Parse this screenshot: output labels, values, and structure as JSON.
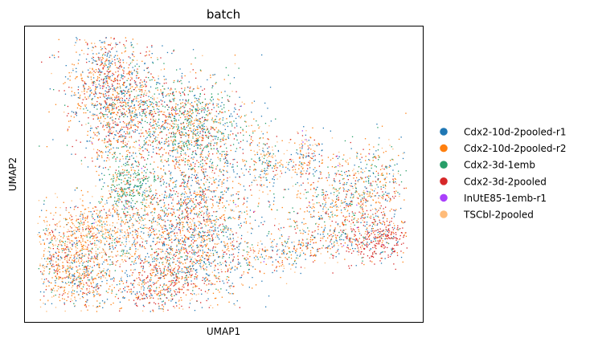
{
  "chart_data": {
    "type": "scatter",
    "title": "batch",
    "xlabel": "UMAP1",
    "ylabel": "UMAP2",
    "x_ticks": [],
    "y_ticks": [],
    "legend_position": "right",
    "series": [
      {
        "name": "Cdx2-10d-2pooled-r1",
        "color": "#1f77b4"
      },
      {
        "name": "Cdx2-10d-2pooled-r2",
        "color": "#ff7f0e"
      },
      {
        "name": "Cdx2-3d-1emb",
        "color": "#279e68"
      },
      {
        "name": "Cdx2-3d-2pooled",
        "color": "#d62728"
      },
      {
        "name": "InUtE85-1emb-r1",
        "color": "#aa40fc"
      },
      {
        "name": "TSCbl-2pooled",
        "color": "#ffbb78"
      }
    ]
  }
}
